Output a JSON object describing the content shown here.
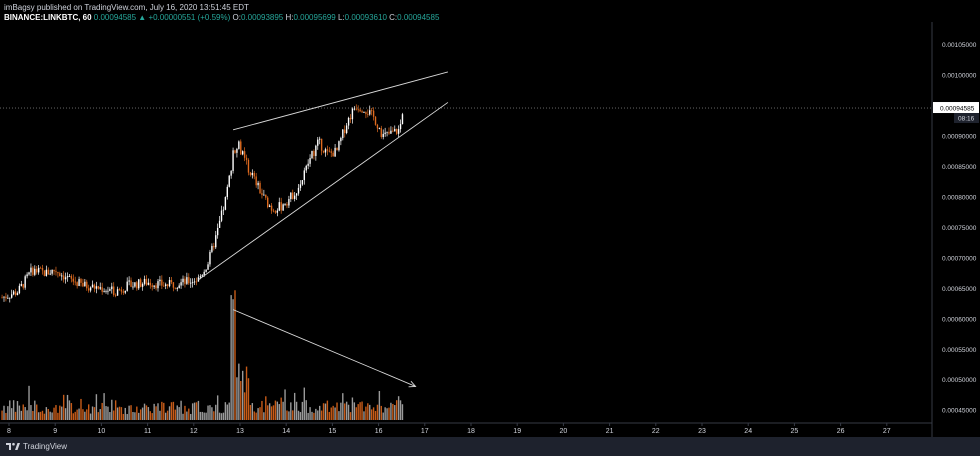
{
  "header": {
    "line1": "imBagsy published on TradingView.com, July 16, 2020 13:51:45 EDT",
    "symbol": "BINANCE:LINKBTC, 60",
    "price": "0.00094585",
    "change": "▲ +0.00000551 (+0.59%)",
    "o_label": "O:",
    "o_value": "0.00093895",
    "h_label": "H:",
    "h_value": "0.00095699",
    "l_label": "L:",
    "l_value": "0.00093610",
    "c_label": "C:",
    "c_value": "0.00094585"
  },
  "footer": {
    "brand": "TradingView"
  },
  "colors": {
    "up": "#ffffff",
    "down": "#e06b1f",
    "vol_up": "#9a9a9a",
    "vol_down": "#c75b18",
    "axis_text": "#d1d4dc",
    "last_price_bg": "#ffffff",
    "last_price_text": "#000000"
  },
  "chart_data": {
    "type": "candlestick",
    "symbol": "LINKBTC",
    "timeframe": "60",
    "x_ticks": [
      "8",
      "9",
      "10",
      "11",
      "12",
      "13",
      "14",
      "15",
      "16",
      "17",
      "18",
      "19",
      "20",
      "21",
      "22",
      "23",
      "24",
      "25",
      "26",
      "27"
    ],
    "y_ticks": [
      "0.00045000",
      "0.00050000",
      "0.00055000",
      "0.00060000",
      "0.00065000",
      "0.00070000",
      "0.00075000",
      "0.00080000",
      "0.00085000",
      "0.00090000",
      "0.00095000",
      "0.00100000",
      "0.00105000"
    ],
    "ylim": [
      0.000429,
      0.001087
    ],
    "last_price": "0.00094585",
    "countdown": "08:16",
    "price_path": [
      {
        "day": 7.85,
        "price": 0.000635
      },
      {
        "day": 8.2,
        "price": 0.000645
      },
      {
        "day": 8.5,
        "price": 0.00068
      },
      {
        "day": 8.8,
        "price": 0.000675
      },
      {
        "day": 9.0,
        "price": 0.00068
      },
      {
        "day": 9.3,
        "price": 0.000665
      },
      {
        "day": 9.6,
        "price": 0.000655
      },
      {
        "day": 10.0,
        "price": 0.00065
      },
      {
        "day": 10.3,
        "price": 0.000645
      },
      {
        "day": 10.6,
        "price": 0.000655
      },
      {
        "day": 11.0,
        "price": 0.00066
      },
      {
        "day": 11.4,
        "price": 0.000655
      },
      {
        "day": 11.8,
        "price": 0.00066
      },
      {
        "day": 12.1,
        "price": 0.000665
      },
      {
        "day": 12.3,
        "price": 0.00069
      },
      {
        "day": 12.5,
        "price": 0.00074
      },
      {
        "day": 12.7,
        "price": 0.0008
      },
      {
        "day": 12.85,
        "price": 0.00087
      },
      {
        "day": 12.95,
        "price": 0.00089
      },
      {
        "day": 13.1,
        "price": 0.00086
      },
      {
        "day": 13.3,
        "price": 0.00083
      },
      {
        "day": 13.5,
        "price": 0.0008
      },
      {
        "day": 13.7,
        "price": 0.00078
      },
      {
        "day": 13.9,
        "price": 0.000785
      },
      {
        "day": 14.1,
        "price": 0.0008
      },
      {
        "day": 14.3,
        "price": 0.00082
      },
      {
        "day": 14.5,
        "price": 0.00086
      },
      {
        "day": 14.7,
        "price": 0.00089
      },
      {
        "day": 14.9,
        "price": 0.00087
      },
      {
        "day": 15.1,
        "price": 0.000875
      },
      {
        "day": 15.3,
        "price": 0.00092
      },
      {
        "day": 15.5,
        "price": 0.00095
      },
      {
        "day": 15.7,
        "price": 0.000945
      },
      {
        "day": 15.9,
        "price": 0.00093
      },
      {
        "day": 16.1,
        "price": 0.0009
      },
      {
        "day": 16.3,
        "price": 0.000905
      },
      {
        "day": 16.45,
        "price": 0.00091
      },
      {
        "day": 16.55,
        "price": 0.000945
      }
    ],
    "annotations": [
      {
        "type": "rising-wedge-upper",
        "from": {
          "day": 12.85,
          "price": 0.00091
        },
        "to": {
          "day": 17.5,
          "price": 0.001005
        }
      },
      {
        "type": "rising-wedge-lower",
        "from": {
          "day": 12.1,
          "price": 0.000664
        },
        "to": {
          "day": 17.5,
          "price": 0.000955
        }
      },
      {
        "type": "volume-divergence-arrow",
        "from": {
          "day": 12.85,
          "price": 0.000615
        },
        "to": {
          "day": 16.8,
          "price": 0.000489
        }
      }
    ]
  }
}
